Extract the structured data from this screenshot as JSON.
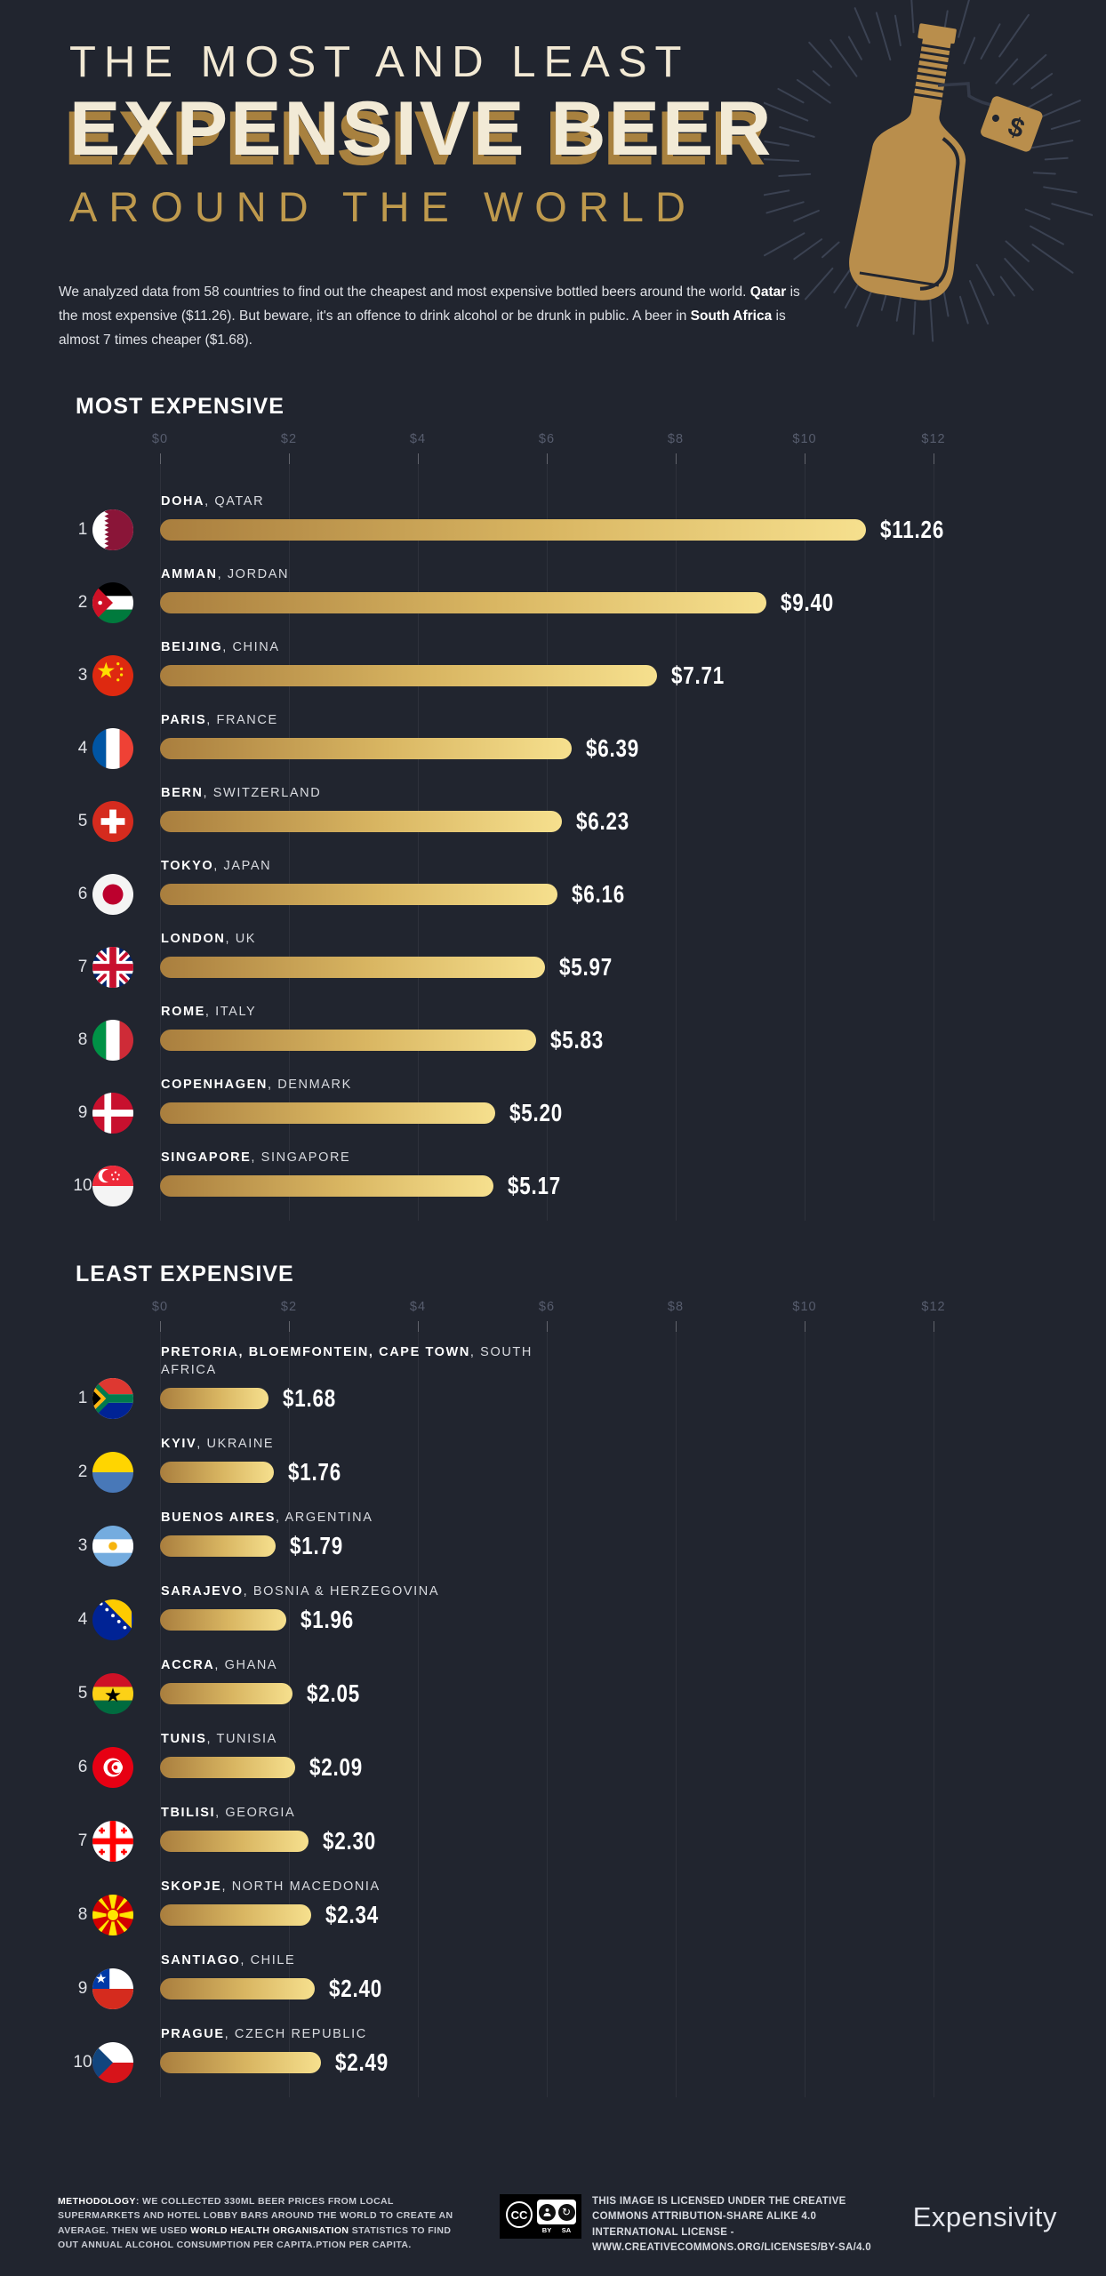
{
  "page": {
    "background": "#21252f",
    "gold_dark": "#a8813f",
    "gold_light": "#f6e08e",
    "cream": "#f2ead6",
    "gold_text": "#bf9a4d"
  },
  "header": {
    "title_line1": "THE MOST AND LEAST",
    "title_line2": "EXPENSIVE BEER",
    "title_line3": "AROUND THE WORLD",
    "bottle_tag_symbol": "$"
  },
  "intro": {
    "segments": [
      {
        "text": "We analyzed data from 58 countries to find out the cheapest and most expensive bottled beers around the world. ",
        "bold": false
      },
      {
        "text": "Qatar",
        "bold": true
      },
      {
        "text": " is the most expensive ($11.26). But beware, it's an offence to drink alcohol or be drunk in public. A beer in ",
        "bold": false
      },
      {
        "text": "South Africa",
        "bold": true
      },
      {
        "text": " is almost 7 times cheaper ($1.68).",
        "bold": false
      }
    ]
  },
  "chart_data": [
    {
      "type": "bar",
      "title": "MOST EXPENSIVE",
      "x_ticks": [
        "$0",
        "$2",
        "$4",
        "$6",
        "$8",
        "$10",
        "$12"
      ],
      "xlim": [
        0,
        12
      ],
      "grid": true,
      "bar_color_gradient": [
        "#a97e3e",
        "#f6e08e"
      ],
      "rows": [
        {
          "rank": "1",
          "city": "DOHA",
          "country": "QATAR",
          "value": 11.26,
          "value_label": "$11.26",
          "flag": "qa"
        },
        {
          "rank": "2",
          "city": "AMMAN",
          "country": "JORDAN",
          "value": 9.4,
          "value_label": "$9.40",
          "flag": "jo"
        },
        {
          "rank": "3",
          "city": "BEIJING",
          "country": "CHINA",
          "value": 7.71,
          "value_label": "$7.71",
          "flag": "cn"
        },
        {
          "rank": "4",
          "city": "PARIS",
          "country": "FRANCE",
          "value": 6.39,
          "value_label": "$6.39",
          "flag": "fr"
        },
        {
          "rank": "5",
          "city": "BERN",
          "country": "SWITZERLAND",
          "value": 6.23,
          "value_label": "$6.23",
          "flag": "ch"
        },
        {
          "rank": "6",
          "city": "TOKYO",
          "country": "JAPAN",
          "value": 6.16,
          "value_label": "$6.16",
          "flag": "jp"
        },
        {
          "rank": "7",
          "city": "LONDON",
          "country": "UK",
          "value": 5.97,
          "value_label": "$5.97",
          "flag": "gb"
        },
        {
          "rank": "8",
          "city": "ROME",
          "country": "ITALY",
          "value": 5.83,
          "value_label": "$5.83",
          "flag": "it"
        },
        {
          "rank": "9",
          "city": "COPENHAGEN",
          "country": "DENMARK",
          "value": 5.2,
          "value_label": "$5.20",
          "flag": "dk"
        },
        {
          "rank": "10",
          "city": "SINGAPORE",
          "country": "SINGAPORE",
          "value": 5.17,
          "value_label": "$5.17",
          "flag": "sg"
        }
      ]
    },
    {
      "type": "bar",
      "title": "LEAST EXPENSIVE",
      "x_ticks": [
        "$0",
        "$2",
        "$4",
        "$6",
        "$8",
        "$10",
        "$12"
      ],
      "xlim": [
        0,
        12
      ],
      "grid": true,
      "bar_color_gradient": [
        "#a97e3e",
        "#f6e08e"
      ],
      "rows": [
        {
          "rank": "1",
          "city": "PRETORIA, BLOEMFONTEIN, CAPE TOWN",
          "country": "SOUTH AFRICA",
          "value": 1.68,
          "value_label": "$1.68",
          "flag": "za"
        },
        {
          "rank": "2",
          "city": "KYIV",
          "country": "UKRAINE",
          "value": 1.76,
          "value_label": "$1.76",
          "flag": "ua"
        },
        {
          "rank": "3",
          "city": "BUENOS AIRES",
          "country": "ARGENTINA",
          "value": 1.79,
          "value_label": "$1.79",
          "flag": "ar"
        },
        {
          "rank": "4",
          "city": "SARAJEVO",
          "country": "BOSNIA & HERZEGOVINA",
          "value": 1.96,
          "value_label": "$1.96",
          "flag": "ba"
        },
        {
          "rank": "5",
          "city": "ACCRA",
          "country": "GHANA",
          "value": 2.05,
          "value_label": "$2.05",
          "flag": "gh"
        },
        {
          "rank": "6",
          "city": "TUNIS",
          "country": "TUNISIA",
          "value": 2.09,
          "value_label": "$2.09",
          "flag": "tn"
        },
        {
          "rank": "7",
          "city": "TBILISI",
          "country": "GEORGIA",
          "value": 2.3,
          "value_label": "$2.30",
          "flag": "ge"
        },
        {
          "rank": "8",
          "city": "SKOPJE",
          "country": "NORTH MACEDONIA",
          "value": 2.34,
          "value_label": "$2.34",
          "flag": "mk"
        },
        {
          "rank": "9",
          "city": "SANTIAGO",
          "country": "CHILE",
          "value": 2.4,
          "value_label": "$2.40",
          "flag": "cl"
        },
        {
          "rank": "10",
          "city": "PRAGUE",
          "country": "CZECH REPUBLIC",
          "value": 2.49,
          "value_label": "$2.49",
          "flag": "cz"
        }
      ]
    }
  ],
  "footer": {
    "methodology_segments": [
      {
        "text": "METHODOLOGY",
        "bold": true
      },
      {
        "text": ": WE COLLECTED 330ML BEER PRICES FROM LOCAL SUPERMARKETS AND HOTEL LOBBY BARS AROUND THE WORLD TO CREATE AN AVERAGE. THEN WE USED ",
        "bold": false
      },
      {
        "text": "WORLD HEALTH ORGANISATION",
        "bold": true
      },
      {
        "text": " STATISTICS TO FIND OUT ANNUAL ALCOHOL CONSUMPTION PER CAPITA.PTION PER CAPITA.",
        "bold": false
      }
    ],
    "cc_badge": {
      "cc": "CC",
      "by": "BY",
      "sa": "SA"
    },
    "license_text": "THIS IMAGE IS LICENSED UNDER THE CREATIVE COMMONS ATTRIBUTION-SHARE ALIKE 4.0 INTERNATIONAL LICENSE - WWW.CREATIVECOMMONS.ORG/LICENSES/BY-SA/4.0",
    "brand": "Expensivity"
  }
}
